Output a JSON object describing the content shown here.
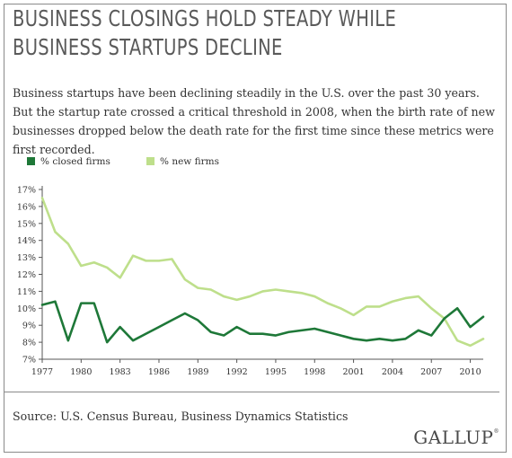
{
  "header": {
    "title_line1": "BUSINESS CLOSINGS HOLD STEADY WHILE",
    "title_line2": "BUSINESS STARTUPS DECLINE",
    "subtitle": "Business startups have been declining steadily in the U.S. over the past 30 years. But the startup rate crossed a critical threshold in 2008, when the birth rate of new businesses dropped below the death rate for the first time since these metrics were first recorded."
  },
  "colors": {
    "closed": "#1e7838",
    "new": "#bedf8b",
    "axis": "#555555"
  },
  "chart_data": {
    "type": "line",
    "title": "",
    "xlabel": "",
    "ylabel": "",
    "x": [
      1977,
      1978,
      1979,
      1980,
      1981,
      1982,
      1983,
      1984,
      1985,
      1986,
      1987,
      1988,
      1989,
      1990,
      1991,
      1992,
      1993,
      1994,
      1995,
      1996,
      1997,
      1998,
      1999,
      2000,
      2001,
      2002,
      2003,
      2004,
      2005,
      2006,
      2007,
      2008,
      2009,
      2010,
      2011
    ],
    "x_tick_labels": [
      "1977",
      "1980",
      "1983",
      "1986",
      "1989",
      "1992",
      "1995",
      "1998",
      "2001",
      "2004",
      "2007",
      "2010"
    ],
    "x_tick_values": [
      1977,
      1980,
      1983,
      1986,
      1989,
      1992,
      1995,
      1998,
      2001,
      2004,
      2007,
      2010
    ],
    "y_tick_labels": [
      "7%",
      "8%",
      "9%",
      "10%",
      "11%",
      "12%",
      "13%",
      "14%",
      "15%",
      "16%",
      "17%"
    ],
    "ylim": [
      7,
      17
    ],
    "xlim": [
      1977,
      2011
    ],
    "grid": false,
    "legend_position": "top-left",
    "series": [
      {
        "name": "% closed firms",
        "values": [
          10.2,
          10.4,
          8.1,
          10.3,
          10.3,
          8.0,
          8.9,
          8.1,
          8.5,
          8.9,
          9.3,
          9.7,
          9.3,
          8.6,
          8.4,
          8.9,
          8.5,
          8.5,
          8.4,
          8.6,
          8.7,
          8.8,
          8.6,
          8.4,
          8.2,
          8.1,
          8.2,
          8.1,
          8.2,
          8.7,
          8.4,
          9.4,
          10.0,
          8.9,
          9.5
        ]
      },
      {
        "name": "% new firms",
        "values": [
          16.5,
          14.5,
          13.8,
          12.5,
          12.7,
          12.4,
          11.8,
          13.1,
          12.8,
          12.8,
          12.9,
          11.7,
          11.2,
          11.1,
          10.7,
          10.5,
          10.7,
          11.0,
          11.1,
          11.0,
          10.9,
          10.7,
          10.3,
          10.0,
          9.6,
          10.1,
          10.1,
          10.4,
          10.6,
          10.7,
          10.0,
          9.4,
          8.1,
          7.8,
          8.2
        ]
      }
    ]
  },
  "footer": {
    "source": "Source: U.S. Census Bureau, Business Dynamics Statistics",
    "logo_text": "GALLUP",
    "logo_mark": "®"
  }
}
